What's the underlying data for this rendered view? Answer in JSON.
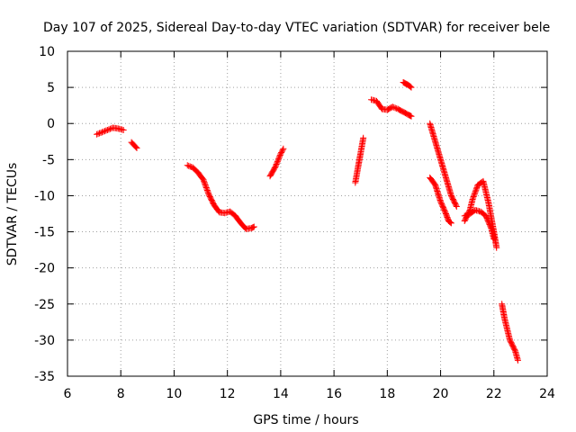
{
  "chart_data": {
    "type": "scatter",
    "title": "Day 107 of 2025, Sidereal Day-to-day VTEC variation (SDTVAR) for receiver bele",
    "xlabel": "GPS time / hours",
    "ylabel": "SDTVAR / TECUs",
    "xlim": [
      6,
      24
    ],
    "ylim": [
      -35,
      10
    ],
    "x_ticks": [
      6,
      8,
      10,
      12,
      14,
      16,
      18,
      20,
      22,
      24
    ],
    "y_ticks": [
      10,
      5,
      0,
      -5,
      -10,
      -15,
      -20,
      -25,
      -30,
      -35
    ],
    "grid": true,
    "marker": "+",
    "color": "#ff0000",
    "series": [
      {
        "name": "seg1",
        "x": [
          7.1,
          7.3,
          7.5,
          7.7,
          7.9,
          8.1
        ],
        "y": [
          -1.5,
          -1.2,
          -0.9,
          -0.6,
          -0.7,
          -0.9
        ]
      },
      {
        "name": "seg2",
        "x": [
          8.4,
          8.5,
          8.6
        ],
        "y": [
          -2.6,
          -3.0,
          -3.4
        ]
      },
      {
        "name": "seg3",
        "x": [
          10.5,
          10.7,
          10.9,
          11.1,
          11.3,
          11.5,
          11.7,
          11.9,
          12.1,
          12.3,
          12.5,
          12.7,
          12.9,
          13.0
        ],
        "y": [
          -5.8,
          -6.1,
          -6.8,
          -7.8,
          -9.8,
          -11.3,
          -12.3,
          -12.4,
          -12.2,
          -12.8,
          -13.8,
          -14.6,
          -14.5,
          -14.3
        ]
      },
      {
        "name": "seg4",
        "x": [
          13.6,
          13.8,
          14.0,
          14.1
        ],
        "y": [
          -7.3,
          -6.0,
          -4.2,
          -3.5
        ]
      },
      {
        "name": "seg5",
        "x": [
          16.8,
          16.9,
          17.0,
          17.1
        ],
        "y": [
          -8.2,
          -6.1,
          -4.1,
          -2.0
        ]
      },
      {
        "name": "seg6",
        "x": [
          17.4,
          17.6,
          17.8,
          18.0,
          18.2,
          18.4,
          18.6,
          18.8,
          18.9
        ],
        "y": [
          3.3,
          3.1,
          2.0,
          1.9,
          2.3,
          2.0,
          1.6,
          1.2,
          1.0
        ]
      },
      {
        "name": "seg7",
        "x": [
          18.6,
          18.7,
          18.8,
          18.9
        ],
        "y": [
          5.7,
          5.5,
          5.3,
          5.0
        ]
      },
      {
        "name": "seg8",
        "x": [
          19.6,
          19.8,
          20.0,
          20.2,
          20.4,
          20.6
        ],
        "y": [
          0.0,
          -2.5,
          -5.0,
          -7.5,
          -10.0,
          -11.5
        ]
      },
      {
        "name": "seg9",
        "x": [
          19.6,
          19.8,
          20.0,
          20.2,
          20.3,
          20.4
        ],
        "y": [
          -7.5,
          -8.5,
          -10.8,
          -12.5,
          -13.5,
          -13.8
        ]
      },
      {
        "name": "seg10",
        "x": [
          20.9,
          21.1,
          21.3,
          21.5,
          21.7,
          21.9,
          22.0
        ],
        "y": [
          -12.8,
          -12.5,
          -12.0,
          -12.2,
          -12.8,
          -14.5,
          -16.0
        ]
      },
      {
        "name": "seg11",
        "x": [
          20.9,
          21.1,
          21.2,
          21.4,
          21.6,
          21.8,
          22.0,
          22.1
        ],
        "y": [
          -13.5,
          -12.0,
          -10.5,
          -8.5,
          -8.0,
          -11.0,
          -15.0,
          -17.2
        ]
      },
      {
        "name": "seg12",
        "x": [
          22.3,
          22.4,
          22.6,
          22.8,
          22.9
        ],
        "y": [
          -25.0,
          -27.0,
          -30.0,
          -31.5,
          -32.8
        ]
      }
    ]
  }
}
